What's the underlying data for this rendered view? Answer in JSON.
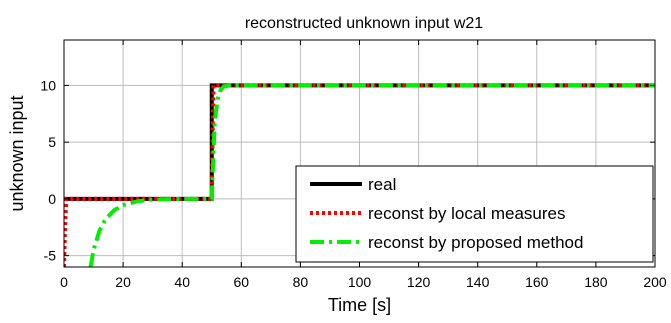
{
  "chart_data": {
    "type": "line",
    "title": "reconstructed unknown input w21",
    "xlabel": "Time [s]",
    "ylabel": "unknown input",
    "xlim": [
      0,
      200
    ],
    "ylim": [
      -6,
      14
    ],
    "xticks": [
      0,
      20,
      40,
      60,
      80,
      100,
      120,
      140,
      160,
      180,
      200
    ],
    "yticks": [
      -5,
      0,
      5,
      10
    ],
    "xtick_labels": [
      "0",
      "20",
      "40",
      "60",
      "80",
      "100",
      "120",
      "140",
      "160",
      "180",
      "200"
    ],
    "ytick_labels": [
      "-5",
      "0",
      "5",
      "10"
    ],
    "grid": true,
    "legend_position": "bottom-right",
    "series": [
      {
        "name": "real",
        "color": "#000000",
        "style": "solid",
        "x": [
          0,
          50,
          50,
          200
        ],
        "y": [
          0,
          0,
          10,
          10
        ]
      },
      {
        "name": "reconst by local measures",
        "color": "#ff0000",
        "style": "dotted",
        "x": [
          0,
          0.4,
          0.8,
          1.2,
          50,
          50.3,
          50.6,
          51,
          200
        ],
        "y": [
          -6,
          -2,
          0,
          0,
          0,
          6,
          10,
          10,
          10
        ]
      },
      {
        "name": "reconst by proposed method",
        "color": "#00ee00",
        "style": "dashdot",
        "x": [
          9,
          10,
          12,
          14,
          17,
          20,
          25,
          30,
          35,
          40,
          45,
          50,
          50.5,
          51,
          52,
          53,
          54,
          56,
          200
        ],
        "y": [
          -6,
          -4.5,
          -2.8,
          -1.8,
          -1.0,
          -0.55,
          -0.2,
          -0.06,
          -0.02,
          0,
          0,
          0,
          3.5,
          6.8,
          8.8,
          9.6,
          9.9,
          10,
          10
        ]
      }
    ]
  }
}
